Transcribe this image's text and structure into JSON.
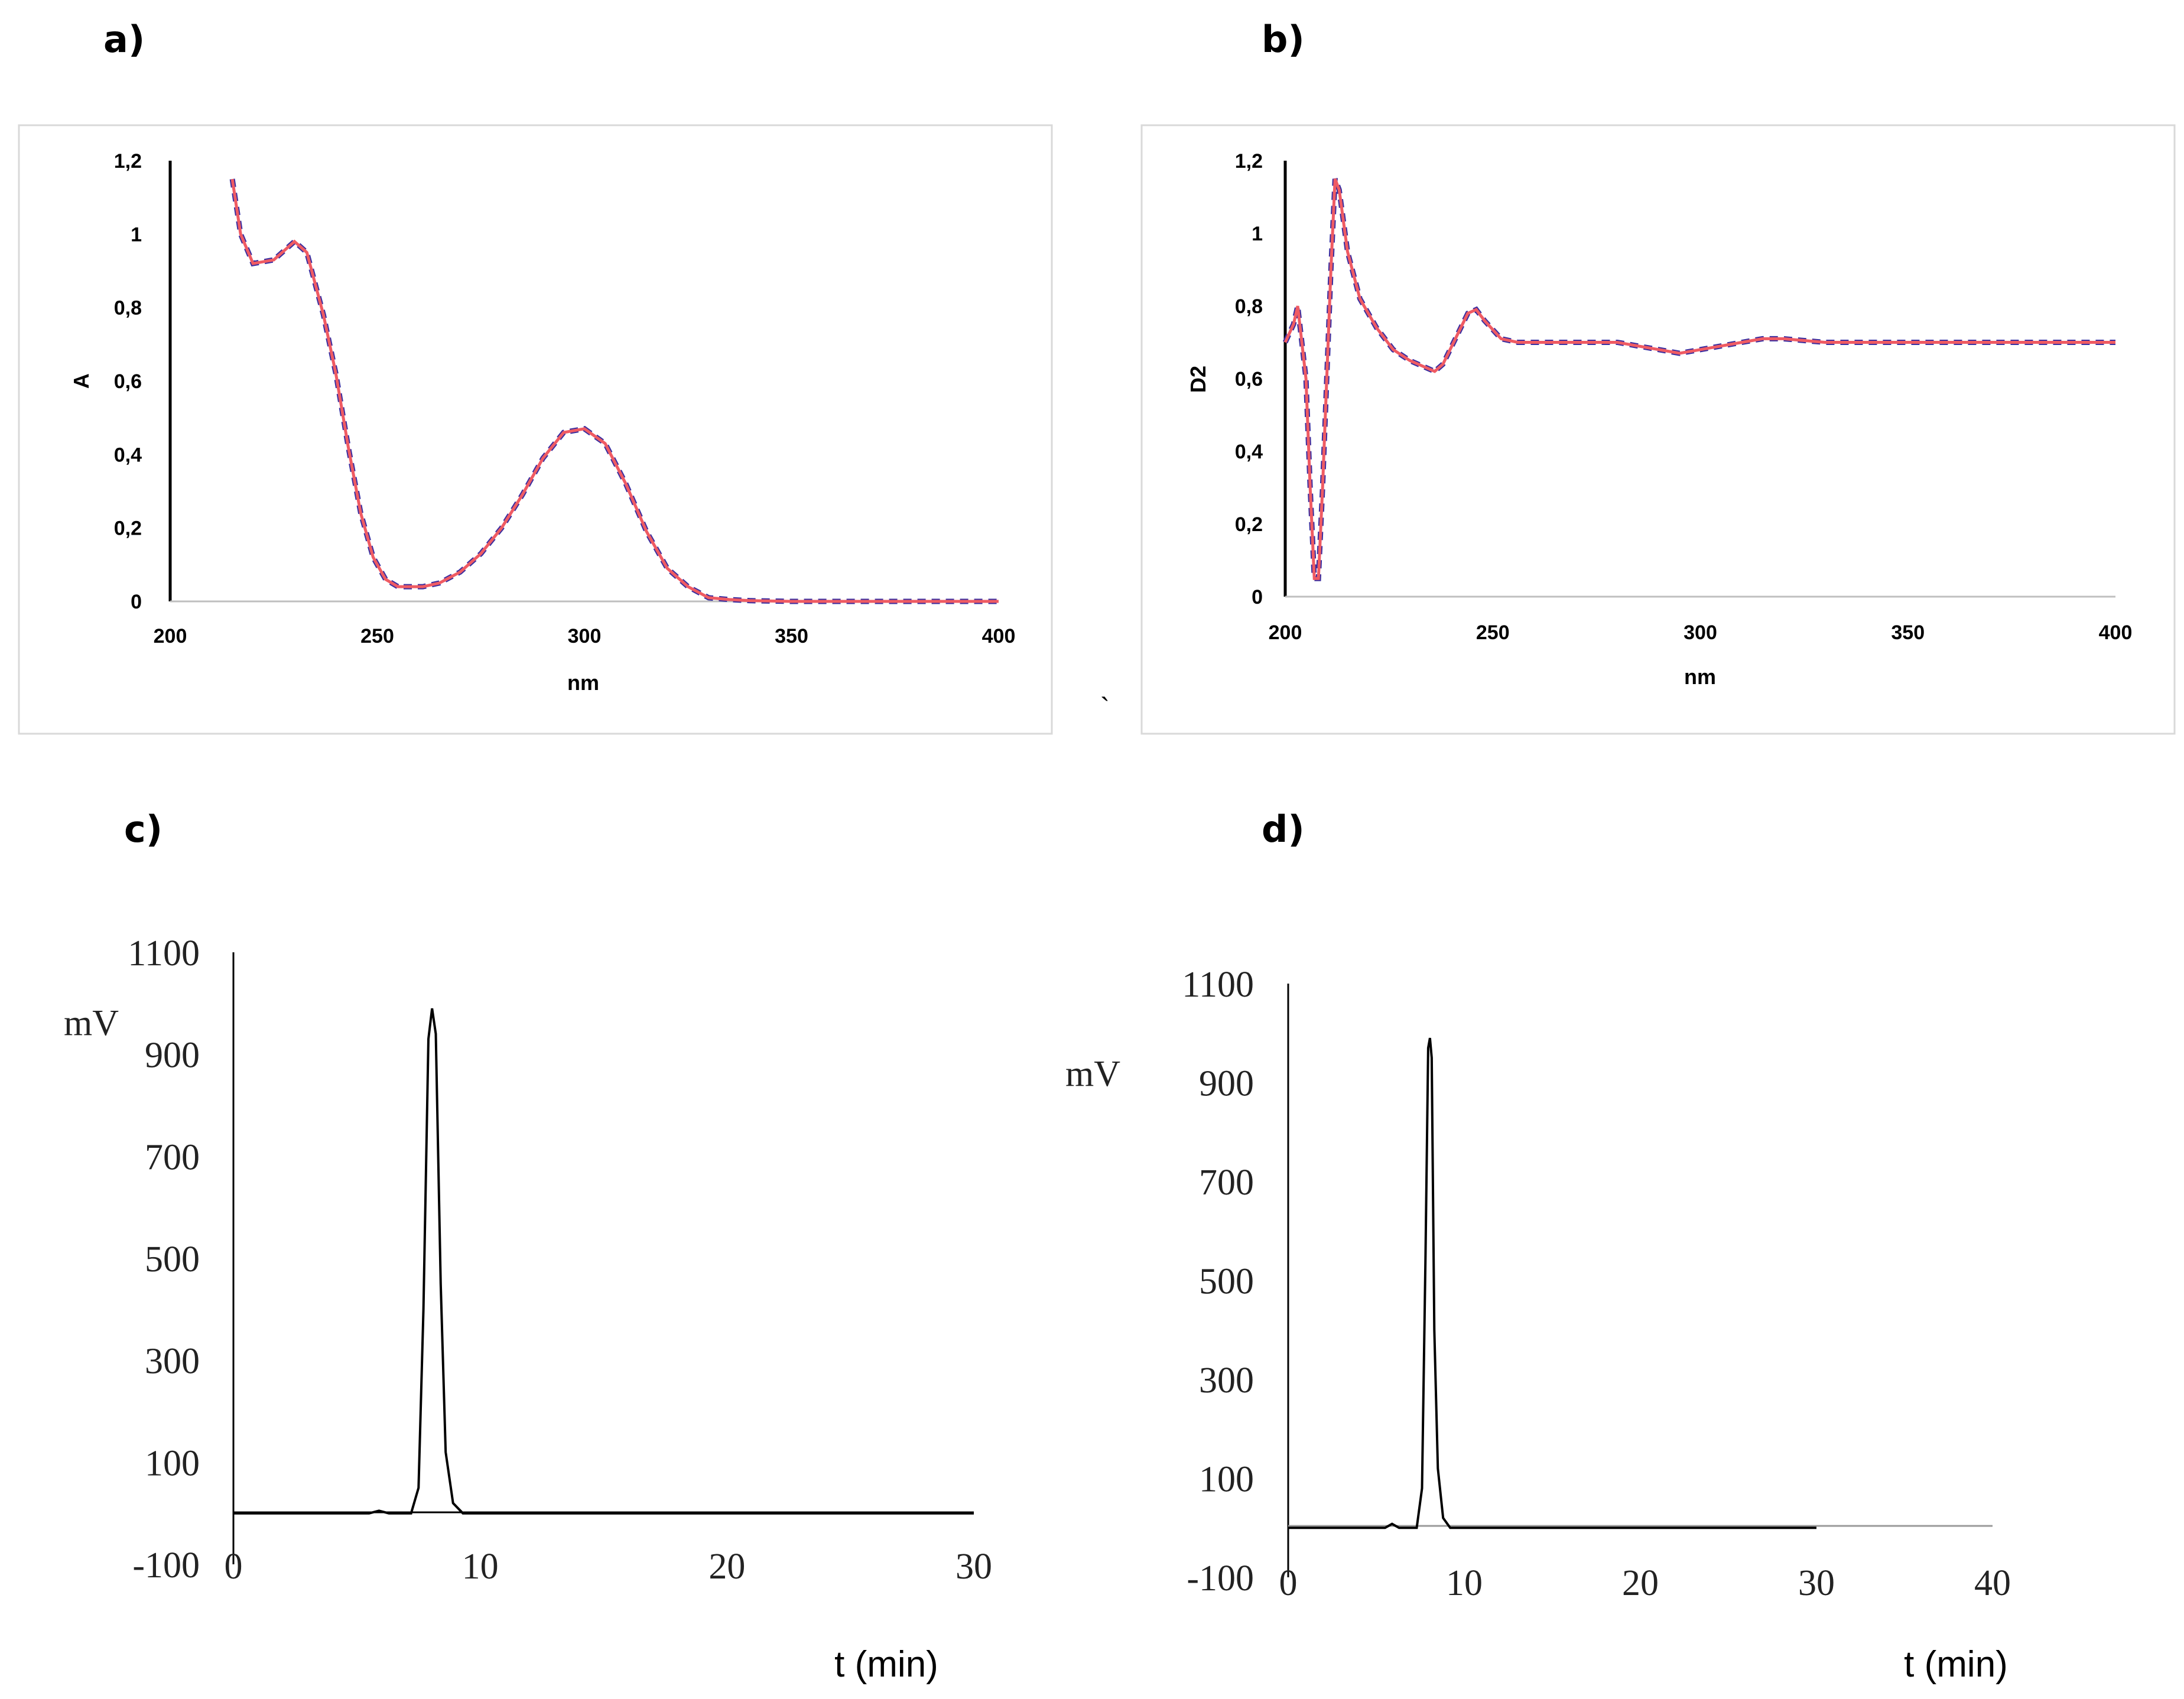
{
  "panel_labels": {
    "a": "a)",
    "b": "b)",
    "c": "c)",
    "d": "d)"
  },
  "stray_mark": "`",
  "chart_data": [
    {
      "id": "a",
      "type": "line",
      "xlabel": "nm",
      "ylabel": "A",
      "xlim": [
        200,
        400
      ],
      "ylim": [
        0,
        1.2
      ],
      "xticks": [
        "200",
        "250",
        "300",
        "350",
        "400"
      ],
      "yticks": [
        "0",
        "0,2",
        "0,4",
        "0,6",
        "0,8",
        "1",
        "1,2"
      ],
      "colors": {
        "overlay": "#ef5b63",
        "under": "#3b2fa0"
      },
      "series": [
        {
          "name": "spectrum",
          "x": [
            215,
            217,
            220,
            225,
            230,
            233,
            237,
            240,
            243,
            246,
            249,
            252,
            255,
            258,
            261,
            265,
            270,
            275,
            280,
            285,
            290,
            295,
            300,
            305,
            310,
            315,
            320,
            325,
            330,
            335,
            340,
            350,
            400
          ],
          "y": [
            1.15,
            1.0,
            0.92,
            0.93,
            0.98,
            0.95,
            0.78,
            0.62,
            0.42,
            0.24,
            0.12,
            0.06,
            0.04,
            0.04,
            0.04,
            0.05,
            0.08,
            0.13,
            0.2,
            0.29,
            0.39,
            0.46,
            0.47,
            0.43,
            0.32,
            0.19,
            0.09,
            0.04,
            0.01,
            0.005,
            0.002,
            0.0,
            0.0
          ]
        }
      ]
    },
    {
      "id": "b",
      "type": "line",
      "xlabel": "nm",
      "ylabel": "D2",
      "xlim": [
        200,
        400
      ],
      "ylim": [
        0,
        1.2
      ],
      "xticks": [
        "200",
        "250",
        "300",
        "350",
        "400"
      ],
      "yticks": [
        "0",
        "0,2",
        "0,4",
        "0,6",
        "0,8",
        "1",
        "1,2"
      ],
      "colors": {
        "overlay": "#ef5b63",
        "under": "#3b2fa0"
      },
      "series": [
        {
          "name": "second derivative",
          "x": [
            200,
            202,
            203,
            205,
            206,
            207,
            208,
            209,
            211,
            212,
            213,
            215,
            218,
            222,
            226,
            230,
            234,
            236,
            238,
            241,
            244,
            246,
            248,
            252,
            256,
            260,
            270,
            280,
            285,
            290,
            295,
            300,
            305,
            310,
            315,
            320,
            330,
            340,
            350,
            360,
            380,
            400
          ],
          "y": [
            0.7,
            0.75,
            0.8,
            0.6,
            0.3,
            0.05,
            0.05,
            0.3,
            0.9,
            1.15,
            1.12,
            0.95,
            0.82,
            0.74,
            0.68,
            0.65,
            0.63,
            0.62,
            0.64,
            0.71,
            0.78,
            0.79,
            0.76,
            0.71,
            0.7,
            0.7,
            0.7,
            0.7,
            0.69,
            0.68,
            0.67,
            0.68,
            0.69,
            0.7,
            0.71,
            0.71,
            0.7,
            0.7,
            0.7,
            0.7,
            0.7,
            0.7
          ]
        }
      ]
    },
    {
      "id": "c",
      "type": "line",
      "xlabel": "t (min)",
      "ylabel": "mV",
      "xlim": [
        0,
        30
      ],
      "ylim": [
        -100,
        1100
      ],
      "xticks": [
        "0",
        "10",
        "20",
        "30"
      ],
      "yticks": [
        "-100",
        "100",
        "300",
        "500",
        "700",
        "900",
        "1100"
      ],
      "colors": {
        "line": "#000000"
      },
      "series": [
        {
          "name": "chromatogram",
          "x": [
            0,
            5.5,
            5.9,
            6.3,
            7.2,
            7.5,
            7.7,
            7.9,
            8.05,
            8.2,
            8.4,
            8.6,
            8.9,
            9.3,
            30
          ],
          "y": [
            0,
            0,
            5,
            0,
            0,
            50,
            400,
            930,
            990,
            940,
            450,
            120,
            20,
            0,
            0
          ]
        }
      ]
    },
    {
      "id": "d",
      "type": "line",
      "xlabel": "t (min)",
      "ylabel": "mV",
      "xlim": [
        0,
        40
      ],
      "ylim": [
        -100,
        1100
      ],
      "xticks": [
        "0",
        "10",
        "20",
        "30",
        "40"
      ],
      "yticks": [
        "-100",
        "100",
        "300",
        "500",
        "700",
        "900",
        "1100"
      ],
      "colors": {
        "line": "#000000"
      },
      "series": [
        {
          "name": "chromatogram",
          "x": [
            0,
            5.5,
            5.9,
            6.3,
            7.3,
            7.6,
            7.8,
            7.95,
            8.05,
            8.15,
            8.3,
            8.5,
            8.8,
            9.2,
            30
          ],
          "y": [
            0,
            0,
            8,
            0,
            0,
            80,
            550,
            970,
            990,
            950,
            400,
            120,
            20,
            0,
            0
          ]
        }
      ]
    }
  ]
}
